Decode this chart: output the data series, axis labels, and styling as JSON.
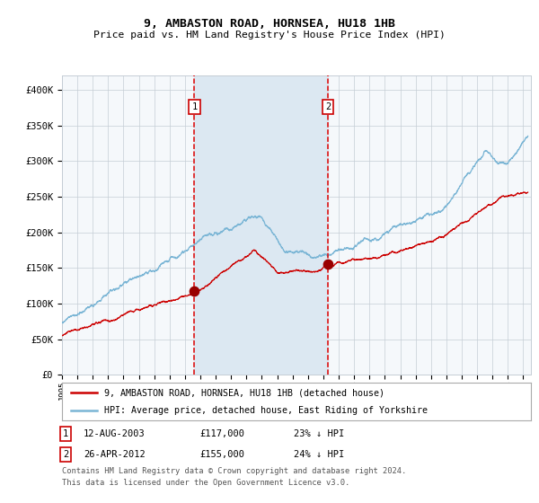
{
  "title": "9, AMBASTON ROAD, HORNSEA, HU18 1HB",
  "subtitle": "Price paid vs. HM Land Registry's House Price Index (HPI)",
  "legend_line1": "9, AMBASTON ROAD, HORNSEA, HU18 1HB (detached house)",
  "legend_line2": "HPI: Average price, detached house, East Riding of Yorkshire",
  "footnote1": "Contains HM Land Registry data © Crown copyright and database right 2024.",
  "footnote2": "This data is licensed under the Open Government Licence v3.0.",
  "table_rows": [
    {
      "num": "1",
      "date": "12-AUG-2003",
      "price": "£117,000",
      "change": "23% ↓ HPI"
    },
    {
      "num": "2",
      "date": "26-APR-2012",
      "price": "£155,000",
      "change": "24% ↓ HPI"
    }
  ],
  "sale1_year": 2003.617,
  "sale2_year": 2012.319,
  "sale1_price": 117000,
  "sale2_price": 155000,
  "hpi_color": "#7ab5d5",
  "house_color": "#cc0000",
  "sale_dot_color": "#990000",
  "dashed_color": "#dd0000",
  "shade_color": "#dce8f2",
  "plot_bg_color": "#f5f8fb",
  "grid_color": "#c5cdd5",
  "ylim_min": 0,
  "ylim_max": 420000,
  "xmin": 1995,
  "xmax": 2025.5,
  "yticks": [
    0,
    50000,
    100000,
    150000,
    200000,
    250000,
    300000,
    350000,
    400000
  ],
  "ylabels": [
    "£0",
    "£50K",
    "£100K",
    "£150K",
    "£200K",
    "£250K",
    "£300K",
    "£350K",
    "£400K"
  ]
}
